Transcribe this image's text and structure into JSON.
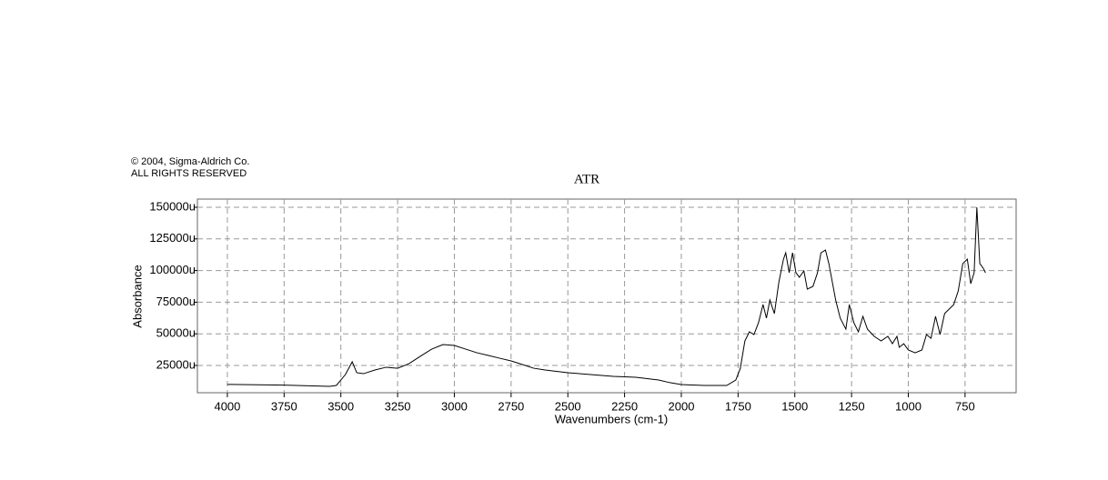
{
  "chart_data": {
    "type": "line",
    "copyright": "© 2004, Sigma-Aldrich Co.",
    "rights": "ALL RIGHTS RESERVED",
    "title": "ATR",
    "x_label": "Wavenumbers (cm-1)",
    "y_label": "Absorbance",
    "color": "#000000",
    "grid": true,
    "xlim": [
      4132,
      525
    ],
    "ylim": [
      3450,
      156470
    ],
    "xticks": [
      4000,
      3750,
      3500,
      3250,
      3000,
      2750,
      2500,
      2250,
      2000,
      1750,
      1500,
      1250,
      1000,
      750
    ],
    "yticks": [
      {
        "value": 25000,
        "label": "25000u"
      },
      {
        "value": 50000,
        "label": "50000u"
      },
      {
        "value": 75000,
        "label": "75000u"
      },
      {
        "value": 100000,
        "label": "100000u"
      },
      {
        "value": 125000,
        "label": "125000u"
      },
      {
        "value": 150000,
        "label": "150000u"
      }
    ],
    "x": [
      4000,
      3750,
      3550,
      3520,
      3480,
      3450,
      3430,
      3400,
      3350,
      3300,
      3250,
      3200,
      3150,
      3100,
      3050,
      3000,
      2950,
      2900,
      2850,
      2800,
      2750,
      2700,
      2650,
      2600,
      2500,
      2400,
      2300,
      2200,
      2100,
      2050,
      2000,
      1900,
      1800,
      1760,
      1740,
      1720,
      1700,
      1680,
      1660,
      1640,
      1625,
      1610,
      1590,
      1570,
      1550,
      1540,
      1525,
      1510,
      1495,
      1480,
      1460,
      1445,
      1420,
      1400,
      1385,
      1365,
      1350,
      1320,
      1300,
      1275,
      1260,
      1240,
      1220,
      1200,
      1180,
      1150,
      1120,
      1090,
      1070,
      1050,
      1040,
      1020,
      1000,
      970,
      940,
      920,
      900,
      880,
      860,
      840,
      800,
      780,
      760,
      740,
      725,
      710,
      698,
      685,
      670,
      660
    ],
    "values": [
      10000,
      9500,
      8500,
      9200,
      17800,
      27900,
      19300,
      18500,
      21400,
      23600,
      22800,
      26400,
      32200,
      37900,
      41500,
      40800,
      37900,
      35000,
      32900,
      30700,
      28600,
      25700,
      22800,
      21400,
      19300,
      17800,
      16400,
      15700,
      13500,
      11400,
      9900,
      9200,
      9200,
      13500,
      22800,
      44400,
      51600,
      49400,
      58800,
      73100,
      62400,
      76700,
      66000,
      91100,
      109000,
      114000,
      98300,
      114000,
      98300,
      94700,
      99700,
      85300,
      87500,
      98300,
      114000,
      116200,
      105500,
      76700,
      62400,
      53700,
      73100,
      58800,
      51600,
      63800,
      53700,
      48000,
      44400,
      48000,
      42200,
      48000,
      39400,
      42200,
      37200,
      35000,
      37200,
      49400,
      46500,
      63800,
      49400,
      66000,
      73100,
      83900,
      105500,
      109000,
      89600,
      98300,
      150000,
      105500,
      101900,
      98300
    ]
  }
}
